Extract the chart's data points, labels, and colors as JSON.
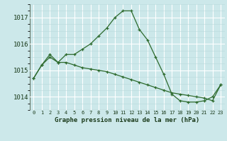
{
  "x_labels": [
    "0",
    "1",
    "2",
    "3",
    "4",
    "5",
    "6",
    "7",
    "8",
    "9",
    "10",
    "11",
    "12",
    "13",
    "14",
    "15",
    "16",
    "17",
    "18",
    "19",
    "20",
    "21",
    "22",
    "23"
  ],
  "series1": [
    1014.7,
    1015.2,
    1015.6,
    1015.3,
    1015.6,
    1015.6,
    1015.8,
    1016.0,
    1016.3,
    1016.6,
    1017.0,
    1017.25,
    1017.25,
    1016.55,
    1016.15,
    1015.5,
    1014.85,
    1014.1,
    1013.85,
    1013.8,
    1013.8,
    1013.85,
    1014.0,
    1014.45
  ],
  "series2": [
    1014.7,
    1015.2,
    1015.5,
    1015.3,
    1015.3,
    1015.2,
    1015.1,
    1015.05,
    1015.0,
    1014.95,
    1014.85,
    1014.75,
    1014.65,
    1014.55,
    1014.45,
    1014.35,
    1014.25,
    1014.15,
    1014.1,
    1014.05,
    1014.0,
    1013.95,
    1013.85,
    1014.45
  ],
  "line_color": "#2d6a2d",
  "bg_color": "#cce8ea",
  "grid_major_color": "#ffffff",
  "grid_minor_color": "#b8d8da",
  "ylim": [
    1013.5,
    1017.5
  ],
  "yticks": [
    1014,
    1015,
    1016,
    1017
  ],
  "xlabel": "Graphe pression niveau de la mer (hPa)",
  "xlabel_color": "#1a3a1a",
  "tick_color": "#1a3a1a",
  "marker": "+"
}
